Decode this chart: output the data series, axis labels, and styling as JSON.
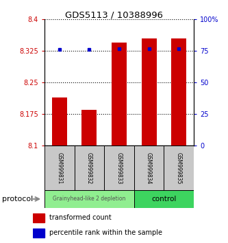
{
  "title": "GDS5113 / 10388996",
  "samples": [
    "GSM999831",
    "GSM999832",
    "GSM999833",
    "GSM999834",
    "GSM999835"
  ],
  "red_values": [
    8.215,
    8.185,
    8.345,
    8.355,
    8.355
  ],
  "blue_values": [
    76,
    76,
    77,
    77,
    77
  ],
  "ylim_left": [
    8.1,
    8.4
  ],
  "ylim_right": [
    0,
    100
  ],
  "yticks_left": [
    8.1,
    8.175,
    8.25,
    8.325,
    8.4
  ],
  "yticks_right": [
    0,
    25,
    50,
    75,
    100
  ],
  "ytick_labels_right": [
    "0",
    "25",
    "50",
    "75",
    "100%"
  ],
  "bar_color": "#CC0000",
  "dot_color": "#0000CC",
  "group1_label": "Grainyhead-like 2 depletion",
  "group2_label": "control",
  "group1_indices": [
    0,
    1,
    2
  ],
  "group2_indices": [
    3,
    4
  ],
  "group1_color": "#90EE90",
  "group2_color": "#3DD45F",
  "protocol_label": "protocol",
  "legend_red": "transformed count",
  "legend_blue": "percentile rank within the sample",
  "bar_width": 0.5,
  "base_value": 8.1,
  "bg_color": "#FFFFFF"
}
